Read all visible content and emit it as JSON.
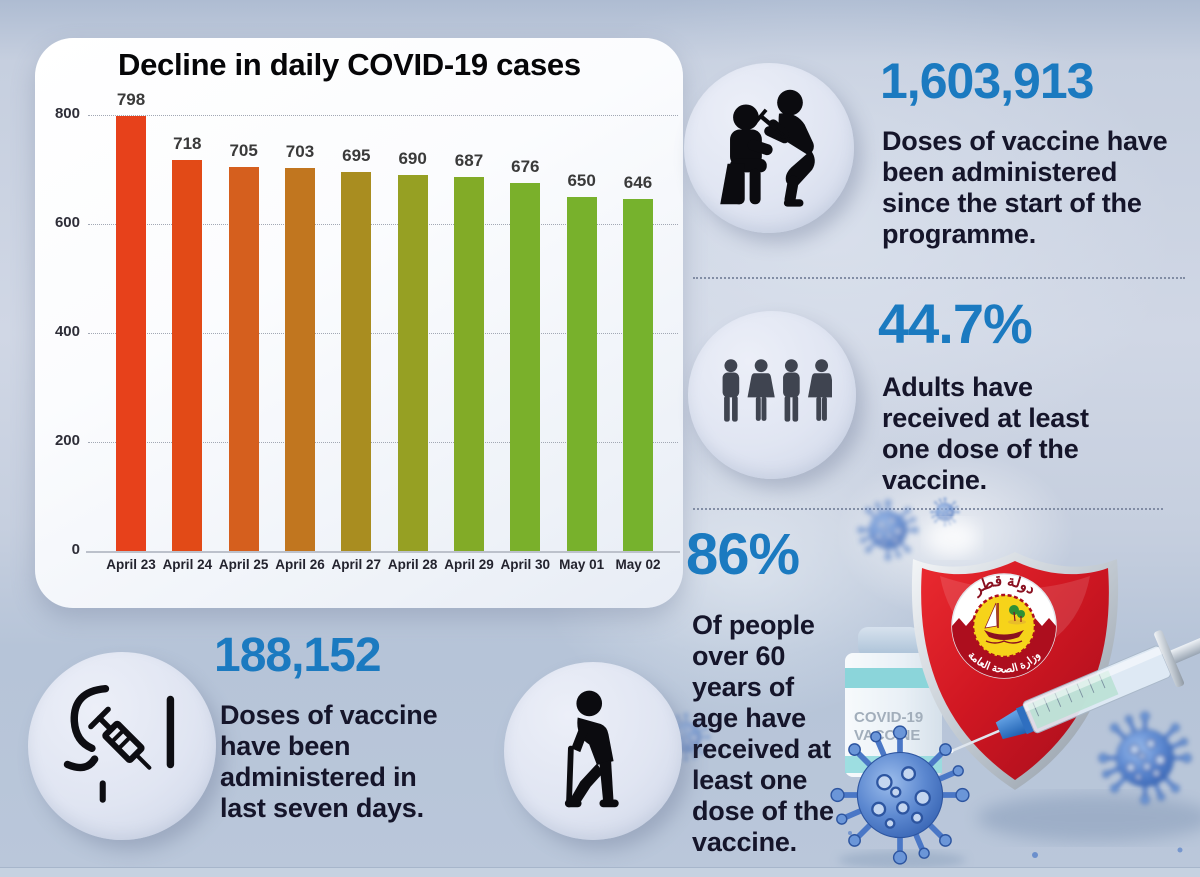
{
  "chart_data": {
    "type": "bar",
    "title": "Decline in daily COVID-19 cases",
    "categories": [
      "April 23",
      "April 24",
      "April 25",
      "April 26",
      "April 27",
      "April 28",
      "April 29",
      "April 30",
      "May 01",
      "May 02"
    ],
    "values": [
      798,
      718,
      705,
      703,
      695,
      690,
      687,
      676,
      650,
      646
    ],
    "bar_colors": [
      "#e7411b",
      "#e24a17",
      "#d55f1e",
      "#c1761f",
      "#a98d20",
      "#96a023",
      "#82ab27",
      "#7ab02b",
      "#78b12c",
      "#76b22d"
    ],
    "yticks": [
      0,
      200,
      400,
      600,
      800
    ],
    "ylim": [
      0,
      800
    ],
    "xlabel": "",
    "ylabel": "",
    "grid": "horizontal-dotted",
    "legend": "none"
  },
  "stats": {
    "total_doses": {
      "value": "1,603,913",
      "description": "Doses of vaccine have been administered since the start of the programme.",
      "icon": "vaccination-icon"
    },
    "adults_one_dose_pct": {
      "value": "44.7%",
      "description": "Adults have received at least one dose of the vaccine.",
      "icon": "adults-group-icon"
    },
    "last_seven_days_doses": {
      "value": "188,152",
      "description": "Doses of vaccine have been administered in last seven days.",
      "icon": "arm-injection-icon"
    },
    "over_60_one_dose_pct": {
      "value": "86%",
      "description": "Of people over 60 years of age have received at least one dose of the vaccine.",
      "icon": "elderly-person-icon"
    }
  },
  "decor": {
    "vial_label_line1": "COVID-19",
    "vial_label_line2": "VACCINE",
    "shield_emblem_top_text": "دولة قطر",
    "shield_emblem_bottom_text": "وزارة الصحة العامة"
  },
  "colors": {
    "accent_blue": "#1b7ac0",
    "background": "#b9c6d9",
    "shield_red": "#c8101f"
  }
}
